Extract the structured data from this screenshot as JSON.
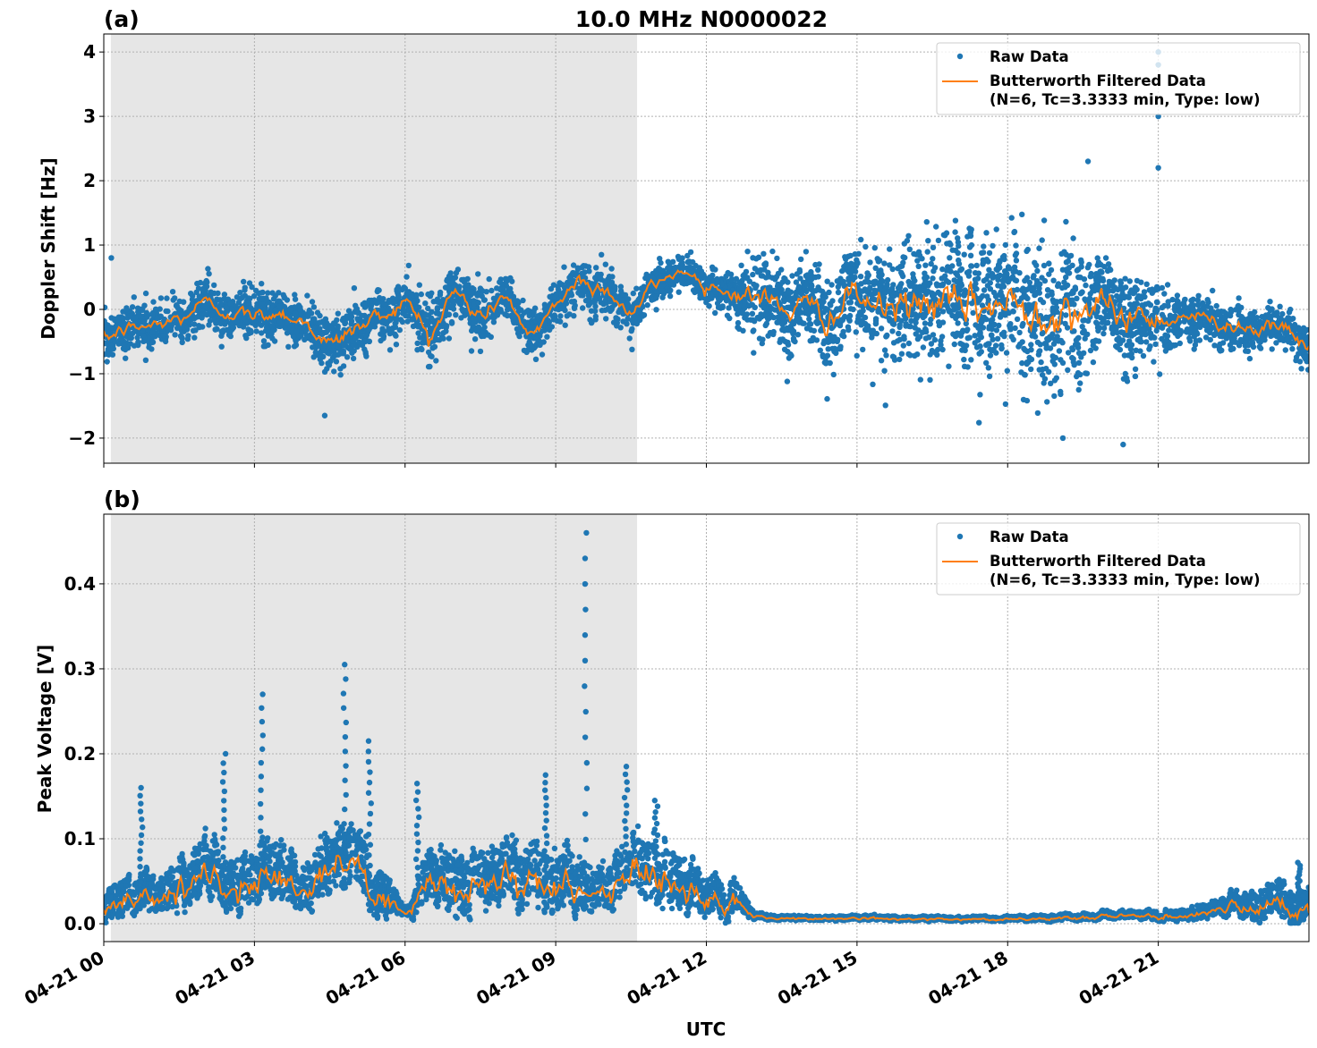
{
  "title": "10.0 MHz N0000022",
  "colors": {
    "raw": "#1f77b4",
    "filtered": "#ff7f0e",
    "shade": "#e6e6e6",
    "grid": "#b0b0b0"
  },
  "xlabel": "UTC",
  "x_ticks": [
    "04-21 00",
    "04-21 03",
    "04-21 06",
    "04-21 09",
    "04-21 12",
    "04-21 15",
    "04-21 18",
    "04-21 21"
  ],
  "legend": {
    "raw": "Raw Data",
    "filtered_line1": "Butterworth Filtered Data",
    "filtered_line2": "(N=6, Tc=3.3333 min, Type: low)"
  },
  "chart_data": [
    {
      "type": "scatter",
      "panel_label": "(a)",
      "ylabel": "Doppler Shift [Hz]",
      "x_unit": "hours UTC on 04-21",
      "xlim": [
        0,
        24
      ],
      "ylim": [
        -2.39,
        4.28
      ],
      "y_ticks": [
        -2,
        -1,
        0,
        1,
        2,
        3,
        4
      ],
      "y_tick_labels": [
        "−2",
        "−1",
        "0",
        "1",
        "2",
        "3",
        "4"
      ],
      "grid": true,
      "legend_position": "top-right",
      "shaded_interval_hours": [
        0.14,
        10.62
      ],
      "filtered_x_hours": [
        0,
        0.5,
        1,
        1.5,
        2,
        2.5,
        3,
        3.5,
        4,
        4.5,
        5,
        5.5,
        6,
        6.5,
        7,
        7.5,
        8,
        8.5,
        9,
        9.5,
        10,
        10.5,
        11,
        11.5,
        12,
        12.5,
        13,
        13.5,
        14,
        14.5,
        15,
        15.5,
        16,
        16.5,
        17,
        17.5,
        18,
        18.5,
        19,
        19.5,
        20,
        20.5,
        21,
        21.5,
        22,
        22.5,
        23,
        23.5,
        24
      ],
      "filtered_y": [
        -0.45,
        -0.3,
        -0.25,
        -0.15,
        0.1,
        -0.05,
        -0.1,
        -0.05,
        -0.2,
        -0.55,
        -0.3,
        -0.1,
        0.1,
        -0.35,
        0.25,
        -0.1,
        0.2,
        -0.45,
        0.1,
        0.45,
        0.3,
        -0.05,
        0.4,
        0.6,
        0.4,
        0.25,
        0.2,
        0.05,
        0.0,
        -0.1,
        0.2,
        0.0,
        0.05,
        0.1,
        0.0,
        0.05,
        0.05,
        0.0,
        0.0,
        0.05,
        -0.05,
        -0.1,
        -0.15,
        -0.1,
        -0.15,
        -0.25,
        -0.3,
        -0.3,
        -0.6
      ],
      "raw_spread": [
        0.3,
        0.3,
        0.3,
        0.3,
        0.3,
        0.3,
        0.3,
        0.3,
        0.35,
        0.4,
        0.35,
        0.3,
        0.35,
        0.4,
        0.35,
        0.35,
        0.3,
        0.3,
        0.3,
        0.35,
        0.35,
        0.3,
        0.25,
        0.2,
        0.25,
        0.3,
        0.5,
        0.6,
        0.6,
        0.6,
        0.7,
        0.7,
        0.75,
        0.8,
        0.85,
        0.9,
        1.0,
        1.0,
        0.95,
        0.9,
        0.7,
        0.6,
        0.5,
        0.35,
        0.3,
        0.3,
        0.3,
        0.3,
        0.35
      ],
      "raw_outliers": [
        {
          "x": 21.0,
          "y": 4.0
        },
        {
          "x": 21.0,
          "y": 3.8
        },
        {
          "x": 21.0,
          "y": 3.0
        },
        {
          "x": 21.0,
          "y": 2.2
        },
        {
          "x": 19.6,
          "y": 2.3
        },
        {
          "x": 20.3,
          "y": -2.1
        },
        {
          "x": 19.1,
          "y": -2.0
        },
        {
          "x": 4.4,
          "y": -1.65
        },
        {
          "x": 0.15,
          "y": 0.8
        }
      ]
    },
    {
      "type": "scatter",
      "panel_label": "(b)",
      "ylabel": "Peak Voltage [V]",
      "x_unit": "hours UTC on 04-21",
      "xlim": [
        0,
        24
      ],
      "ylim": [
        -0.021,
        0.482
      ],
      "y_ticks": [
        0.0,
        0.1,
        0.2,
        0.3,
        0.4
      ],
      "y_tick_labels": [
        "0.0",
        "0.1",
        "0.2",
        "0.3",
        "0.4"
      ],
      "grid": true,
      "legend_position": "top-right",
      "shaded_interval_hours": [
        0.14,
        10.62
      ],
      "filtered_x_hours": [
        0,
        0.5,
        1,
        1.5,
        2,
        2.5,
        3,
        3.5,
        4,
        4.5,
        5,
        5.5,
        6,
        6.5,
        7,
        7.5,
        8,
        8.5,
        9,
        9.5,
        10,
        10.5,
        11,
        11.5,
        12,
        12.5,
        13,
        13.5,
        14,
        14.5,
        15,
        15.5,
        16,
        16.5,
        17,
        17.5,
        18,
        18.5,
        19,
        19.5,
        20,
        20.5,
        21,
        21.5,
        22,
        22.5,
        23,
        23.5,
        24
      ],
      "filtered_y": [
        0.02,
        0.03,
        0.03,
        0.04,
        0.05,
        0.045,
        0.04,
        0.06,
        0.04,
        0.06,
        0.07,
        0.03,
        0.013,
        0.04,
        0.04,
        0.04,
        0.06,
        0.05,
        0.05,
        0.04,
        0.03,
        0.06,
        0.05,
        0.04,
        0.025,
        0.03,
        0.008,
        0.006,
        0.006,
        0.006,
        0.006,
        0.006,
        0.005,
        0.005,
        0.005,
        0.005,
        0.005,
        0.006,
        0.006,
        0.007,
        0.008,
        0.008,
        0.008,
        0.01,
        0.012,
        0.018,
        0.02,
        0.025,
        0.02
      ],
      "raw_spread": [
        0.02,
        0.025,
        0.025,
        0.03,
        0.04,
        0.035,
        0.035,
        0.04,
        0.035,
        0.04,
        0.045,
        0.03,
        0.008,
        0.035,
        0.04,
        0.035,
        0.045,
        0.04,
        0.04,
        0.035,
        0.03,
        0.045,
        0.04,
        0.035,
        0.025,
        0.025,
        0.004,
        0.003,
        0.003,
        0.003,
        0.003,
        0.003,
        0.003,
        0.003,
        0.003,
        0.003,
        0.003,
        0.004,
        0.004,
        0.004,
        0.005,
        0.005,
        0.006,
        0.008,
        0.01,
        0.015,
        0.02,
        0.025,
        0.02
      ],
      "raw_peaks": [
        {
          "x": 0.75,
          "y": 0.16
        },
        {
          "x": 2.4,
          "y": 0.2
        },
        {
          "x": 3.15,
          "y": 0.27
        },
        {
          "x": 4.8,
          "y": 0.305
        },
        {
          "x": 5.3,
          "y": 0.215
        },
        {
          "x": 9.6,
          "y": 0.46
        },
        {
          "x": 10.4,
          "y": 0.185
        },
        {
          "x": 6.25,
          "y": 0.165
        },
        {
          "x": 8.8,
          "y": 0.175
        },
        {
          "x": 11.0,
          "y": 0.145
        },
        {
          "x": 23.8,
          "y": 0.072
        }
      ]
    }
  ]
}
